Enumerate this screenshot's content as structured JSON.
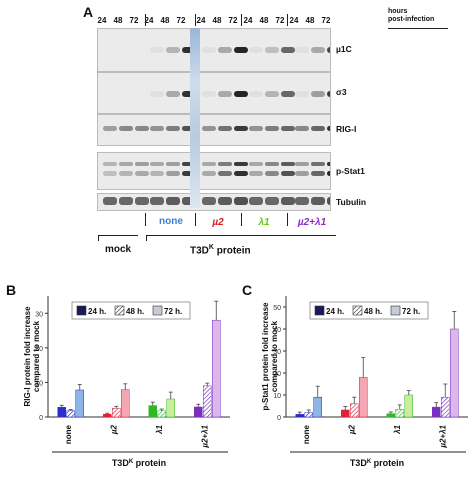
{
  "panel_a": {
    "letter": "A",
    "lanes": [
      "24",
      "48",
      "72",
      "24",
      "48",
      "72",
      "24",
      "48",
      "72",
      "24",
      "48",
      "72",
      "24",
      "48",
      "72"
    ],
    "hours_label_line1": "hours",
    "hours_label_line2": "post-infection",
    "blot_labels": [
      "µ1C",
      "σ3",
      "RIG-I",
      "p-Stat1",
      "Tubulin"
    ],
    "groups": {
      "mock": "mock",
      "none": "none",
      "mu2": "µ2",
      "l1": "λ1",
      "mu2l1": "µ2+λ1"
    },
    "t3d_prefix": "T3D",
    "t3d_sup": "K",
    "t3d_suffix": " protein",
    "colors": {
      "none": "#3d7fd0",
      "mu2": "#d6202a",
      "l1": "#6cc21f",
      "mu2l1": "#8a2fc0"
    }
  },
  "chart_data": [
    {
      "type": "bar",
      "panel": "B",
      "ylabel": "RIG-I protein fold increase compared to mock",
      "ylim": [
        0,
        35
      ],
      "yticks": [
        0,
        10,
        20,
        30
      ],
      "categories": [
        "none",
        "µ2",
        "λ1",
        "µ2+λ1"
      ],
      "xgroup_prefix": "T3D",
      "xgroup_sup": "K",
      "xgroup_suffix": " protein",
      "legend": [
        "24 h.",
        "48 h.",
        "72 h."
      ],
      "series": [
        {
          "name": "24 h.",
          "values": [
            2.8,
            0.8,
            3.3,
            2.9
          ],
          "errors": [
            0.6,
            0.3,
            1.0,
            0.8
          ]
        },
        {
          "name": "48 h.",
          "values": [
            1.8,
            2.5,
            1.8,
            9.0
          ],
          "errors": [
            0.4,
            0.6,
            0.5,
            0.8
          ]
        },
        {
          "name": "72 h.",
          "values": [
            7.8,
            7.9,
            5.2,
            28.0
          ],
          "errors": [
            1.6,
            1.7,
            2.0,
            5.5
          ]
        }
      ]
    },
    {
      "type": "bar",
      "panel": "C",
      "ylabel": "p-Stat1 protein fold increase compared to mock",
      "ylim": [
        0,
        55
      ],
      "yticks": [
        0,
        10,
        20,
        30,
        40,
        50
      ],
      "categories": [
        "none",
        "µ2",
        "λ1",
        "µ2+λ1"
      ],
      "xgroup_prefix": "T3D",
      "xgroup_sup": "K",
      "xgroup_suffix": " protein",
      "legend": [
        "24 h.",
        "48 h.",
        "72 h."
      ],
      "series": [
        {
          "name": "24 h.",
          "values": [
            1.2,
            3.2,
            1.5,
            4.5
          ],
          "errors": [
            1.0,
            1.6,
            0.8,
            2.0
          ]
        },
        {
          "name": "48 h.",
          "values": [
            2.0,
            6.0,
            3.5,
            9.0
          ],
          "errors": [
            1.2,
            3.0,
            2.0,
            6.0
          ]
        },
        {
          "name": "72 h.",
          "values": [
            9.0,
            18.0,
            10.0,
            40.0
          ],
          "errors": [
            5.0,
            9.0,
            2.0,
            8.0
          ]
        }
      ]
    }
  ]
}
